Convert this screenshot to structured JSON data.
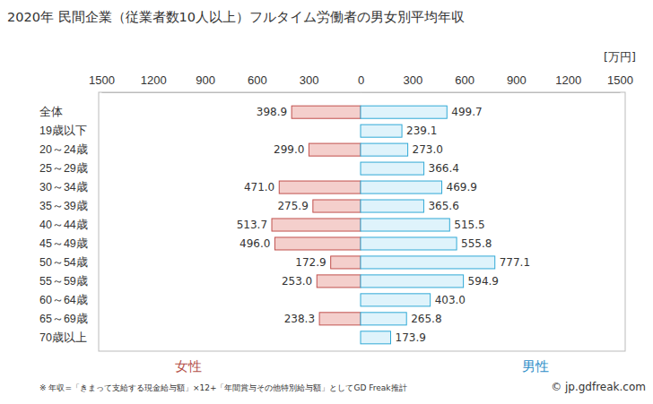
{
  "chart_data": [
    {
      "type": "bar",
      "orientation": "horizontal",
      "title": "2020年 民間企業（従業者数10人以上）フルタイム労働者の男女別平均年収",
      "categories": [
        "全体",
        "19歳以下",
        "20～24歳",
        "25～29歳",
        "30～34歳",
        "35～39歳",
        "40～44歳",
        "45～49歳",
        "50～54歳",
        "55～59歳",
        "60～64歳",
        "65～69歳",
        "70歳以上"
      ],
      "series": [
        {
          "name": "女性",
          "color": "#f4cfcc",
          "values": [
            398.9,
            null,
            299.0,
            null,
            471.0,
            275.9,
            513.7,
            496.0,
            172.9,
            253.0,
            null,
            238.3,
            null
          ]
        }
      ],
      "xlim": [
        0,
        1500
      ],
      "xticks": [
        300,
        600,
        900,
        1200,
        1500
      ],
      "data_labels": true,
      "grid": false,
      "annotations": [
        "※ 年収=「きまって支給する現金給与額」×12+「年間賞与その他特別給与額」としてGD Freak推計"
      ]
    },
    {
      "type": "bar",
      "orientation": "horizontal",
      "x_label": "[万円]",
      "categories": [
        "全体",
        "19歳以下",
        "20～24歳",
        "25～29歳",
        "30～34歳",
        "35～39歳",
        "40～44歳",
        "45～49歳",
        "50～54歳",
        "55～59歳",
        "60～64歳",
        "65～69歳",
        "70歳以上"
      ],
      "series": [
        {
          "name": "男性",
          "color": "#dff3fb",
          "values": [
            499.7,
            239.1,
            273.0,
            366.4,
            469.9,
            365.6,
            515.5,
            555.8,
            777.1,
            594.9,
            403.0,
            265.8,
            173.9
          ]
        }
      ],
      "xlim": [
        0,
        1500
      ],
      "xticks": [
        0,
        300,
        600,
        900,
        1200,
        1500
      ],
      "data_labels": true,
      "grid": false,
      "annotations": [
        "© jp.gdfreak.com"
      ]
    }
  ]
}
